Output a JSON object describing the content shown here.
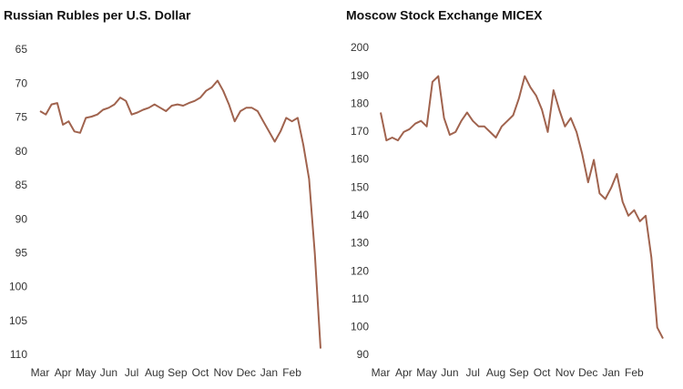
{
  "chart_data": [
    {
      "type": "line",
      "title": "Russian Rubles per U.S. Dollar",
      "categories": [
        "Mar",
        null,
        null,
        null,
        "Apr",
        null,
        null,
        null,
        "May",
        null,
        null,
        null,
        "Jun",
        null,
        null,
        null,
        "Jul",
        null,
        null,
        null,
        "Aug",
        null,
        null,
        null,
        "Sep",
        null,
        null,
        null,
        "Oct",
        null,
        null,
        null,
        "Nov",
        null,
        null,
        null,
        "Dec",
        null,
        null,
        null,
        "Jan",
        null,
        null,
        null,
        "Feb",
        null,
        null,
        null,
        null,
        null
      ],
      "values": [
        74,
        74.5,
        73,
        72.8,
        76,
        75.5,
        77,
        77.2,
        75,
        74.8,
        74.5,
        73.8,
        73.5,
        73,
        72,
        72.5,
        74.5,
        74.2,
        73.8,
        73.5,
        73,
        73.5,
        74,
        73.2,
        73,
        73.2,
        72.8,
        72.5,
        72,
        71,
        70.5,
        69.5,
        71,
        73,
        75.5,
        74,
        73.5,
        73.5,
        74,
        75.5,
        77,
        78.5,
        77,
        75,
        75.5,
        75,
        79,
        84,
        95,
        109
      ],
      "color": "#a0634e",
      "ylim": [
        65,
        110
      ],
      "yticks": [
        65,
        70,
        75,
        80,
        85,
        90,
        95,
        100,
        105,
        110
      ],
      "y_inverted": true
    },
    {
      "type": "line",
      "title": "Moscow Stock Exchange MICEX",
      "categories": [
        "Mar",
        null,
        null,
        null,
        "Apr",
        null,
        null,
        null,
        "May",
        null,
        null,
        null,
        "Jun",
        null,
        null,
        null,
        "Jul",
        null,
        null,
        null,
        "Aug",
        null,
        null,
        null,
        "Sep",
        null,
        null,
        null,
        "Oct",
        null,
        null,
        null,
        "Nov",
        null,
        null,
        null,
        "Dec",
        null,
        null,
        null,
        "Jan",
        null,
        null,
        null,
        "Feb",
        null,
        null,
        null,
        null,
        null
      ],
      "values": [
        177,
        167,
        168,
        167,
        170,
        171,
        173,
        174,
        172,
        188,
        190,
        175,
        169,
        170,
        174,
        177,
        174,
        172,
        172,
        170,
        168,
        172,
        174,
        176,
        182,
        190,
        186,
        183,
        178,
        170,
        185,
        178,
        172,
        175,
        170,
        162,
        152,
        160,
        148,
        146,
        150,
        155,
        145,
        140,
        142,
        138,
        140,
        125,
        100,
        96
      ],
      "color": "#a0634e",
      "ylim": [
        90,
        200
      ],
      "yticks": [
        90,
        100,
        110,
        120,
        130,
        140,
        150,
        160,
        170,
        180,
        190,
        200
      ],
      "y_inverted": false
    }
  ]
}
